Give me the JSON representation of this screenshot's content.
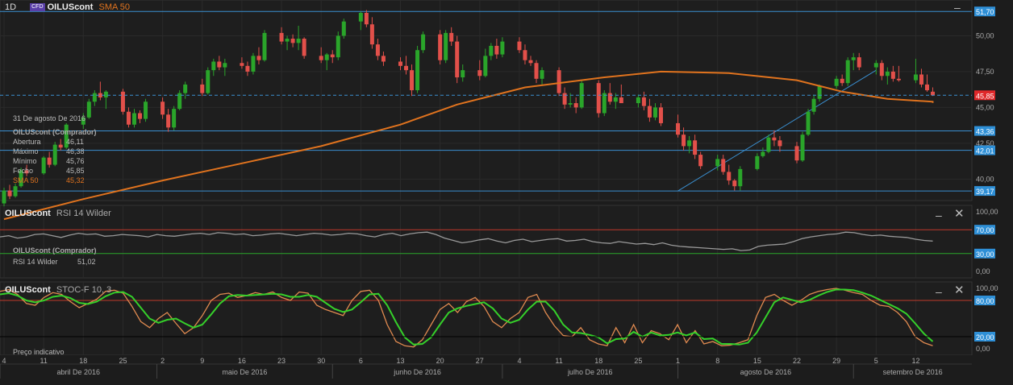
{
  "header": {
    "timeframe": "1D",
    "cfd_badge": "CFD",
    "symbol": "OILUScont",
    "indicator": "SMA 50"
  },
  "info_panel": {
    "date": "31 De agosto De 2016",
    "title": "OILUScont (Comprador)",
    "rows": [
      {
        "label": "Abertura",
        "value": "46,11"
      },
      {
        "label": "Máximo",
        "value": "46,38"
      },
      {
        "label": "Mínimo",
        "value": "45,76"
      },
      {
        "label": "Fecho",
        "value": "45,85"
      },
      {
        "label": "SMA 50",
        "value": "45,32"
      }
    ]
  },
  "rsi_panel": {
    "symbol": "OILUScont",
    "indicator": "RSI 14 Wilder",
    "info_title": "OILUScont (Comprador)",
    "info_label": "RSI 14 Wilder",
    "info_value": "51,02"
  },
  "stoch_panel": {
    "symbol": "OILUScont",
    "indicator": "STOC-F 10, 3",
    "footnote": "Preço indicativo"
  },
  "colors": {
    "up": "#2aa52a",
    "down": "#e2504a",
    "sma": "#e0731e",
    "hline": "#3a8fd0",
    "price_badge": "#e0282a",
    "level_badge": "#2e8fd6"
  },
  "chart_data": [
    {
      "type": "candlestick",
      "title": "OILUScont",
      "overlay": "SMA 50",
      "ylim": [
        38.5,
        52.5
      ],
      "y_ticks": [
        "51,70",
        "50,00",
        "47,50",
        "45,85",
        "45,00",
        "43,36",
        "42,50",
        "42,01",
        "40,00",
        "39,17"
      ],
      "x_ticks": [
        "4",
        "11",
        "18",
        "25",
        "2",
        "9",
        "16",
        "23",
        "30",
        "6",
        "13",
        "20",
        "27",
        "4",
        "11",
        "18",
        "25",
        "1",
        "8",
        "15",
        "22",
        "29",
        "5",
        "12"
      ],
      "months": [
        "abril De 2016",
        "maio De 2016",
        "junho De 2016",
        "julho De 2016",
        "agosto De 2016",
        "setembro De 2016"
      ],
      "last_price": 45.85,
      "last_price_label": "45,85",
      "horizontal_levels": [
        {
          "value": 51.7,
          "label": "51,70"
        },
        {
          "value": 43.36,
          "label": "43,36"
        },
        {
          "value": 42.01,
          "label": "42,01"
        },
        {
          "value": 39.17,
          "label": "39,17"
        }
      ],
      "trendline": {
        "from": [
          "2016-08-01",
          39.17
        ],
        "to": [
          "2016-09-05",
          47.6
        ]
      },
      "start_date": "2016-04-04",
      "ohlc": [
        [
          38.3,
          39.4,
          38.1,
          39.2
        ],
        [
          39.2,
          39.6,
          38.6,
          38.8
        ],
        [
          38.8,
          39.7,
          38.7,
          39.5
        ],
        [
          39.5,
          40.8,
          39.4,
          40.6
        ],
        [
          40.6,
          41.0,
          40.2,
          40.4
        ],
        [
          40.4,
          41.6,
          40.3,
          41.5
        ],
        [
          41.5,
          41.9,
          40.8,
          41.0
        ],
        [
          41.0,
          42.6,
          40.9,
          42.4
        ],
        [
          42.4,
          42.8,
          42.0,
          42.2
        ],
        [
          42.2,
          43.9,
          42.1,
          43.8
        ],
        [
          43.8,
          44.6,
          43.5,
          44.3
        ],
        [
          44.3,
          45.6,
          44.2,
          45.4
        ],
        [
          45.4,
          46.2,
          45.1,
          46.0
        ],
        [
          46.0,
          46.8,
          45.5,
          45.7
        ],
        [
          45.7,
          46.2,
          44.9,
          46.1
        ],
        [
          46.1,
          46.3,
          44.5,
          44.7
        ],
        [
          44.7,
          45.0,
          43.6,
          43.8
        ],
        [
          43.8,
          44.9,
          43.6,
          44.6
        ],
        [
          44.6,
          44.8,
          43.9,
          44.2
        ],
        [
          44.2,
          45.6,
          44.0,
          45.4
        ],
        [
          45.4,
          45.7,
          44.2,
          44.5
        ],
        [
          44.5,
          44.9,
          43.3,
          43.6
        ],
        [
          43.6,
          45.1,
          43.4,
          44.9
        ],
        [
          44.9,
          46.2,
          44.8,
          46.0
        ],
        [
          46.0,
          46.8,
          45.6,
          46.6
        ],
        [
          46.6,
          47.0,
          45.8,
          46.0
        ],
        [
          46.0,
          47.8,
          45.9,
          47.6
        ],
        [
          47.6,
          48.4,
          47.2,
          48.2
        ],
        [
          48.2,
          48.6,
          47.6,
          47.8
        ],
        [
          47.8,
          48.4,
          47.2,
          48.1
        ],
        [
          48.1,
          48.5,
          47.7,
          47.9
        ],
        [
          47.9,
          48.2,
          47.2,
          47.5
        ],
        [
          47.5,
          48.8,
          47.3,
          48.6
        ],
        [
          48.6,
          49.2,
          48.0,
          48.3
        ],
        [
          48.3,
          50.4,
          48.2,
          50.2
        ],
        [
          50.2,
          50.6,
          49.4,
          49.6
        ],
        [
          49.6,
          50.0,
          49.0,
          49.8
        ],
        [
          49.8,
          50.1,
          49.2,
          49.5
        ],
        [
          49.5,
          50.7,
          49.0,
          49.8
        ],
        [
          49.8,
          49.9,
          48.4,
          48.6
        ],
        [
          48.6,
          49.2,
          48.1,
          48.3
        ],
        [
          48.3,
          48.8,
          47.6,
          48.7
        ],
        [
          48.7,
          49.0,
          48.1,
          48.5
        ],
        [
          48.5,
          50.3,
          48.3,
          50.0
        ],
        [
          50.0,
          51.2,
          49.8,
          51.0
        ],
        [
          51.0,
          51.7,
          50.4,
          51.6
        ],
        [
          51.6,
          51.8,
          50.6,
          50.8
        ],
        [
          50.8,
          51.3,
          49.1,
          49.4
        ],
        [
          49.4,
          49.8,
          48.3,
          48.6
        ],
        [
          48.6,
          48.9,
          47.9,
          48.2
        ],
        [
          48.2,
          48.5,
          47.6,
          47.9
        ],
        [
          47.9,
          48.6,
          47.3,
          47.6
        ],
        [
          47.6,
          48.0,
          45.8,
          46.2
        ],
        [
          46.2,
          49.3,
          46.0,
          49.0
        ],
        [
          49.0,
          50.3,
          48.8,
          50.1
        ],
        [
          50.1,
          50.4,
          48.0,
          48.3
        ],
        [
          48.3,
          50.4,
          48.1,
          50.2
        ],
        [
          50.2,
          50.6,
          49.3,
          49.6
        ],
        [
          49.6,
          50.0,
          46.7,
          47.1
        ],
        [
          47.1,
          48.0,
          46.8,
          47.6
        ],
        [
          47.6,
          48.3,
          46.9,
          47.2
        ],
        [
          47.2,
          49.1,
          47.1,
          48.6
        ],
        [
          48.6,
          49.5,
          48.3,
          49.3
        ],
        [
          49.3,
          49.8,
          48.4,
          48.7
        ],
        [
          48.7,
          49.9,
          48.5,
          49.6
        ],
        [
          49.6,
          49.9,
          48.8,
          49.0
        ],
        [
          49.0,
          49.4,
          48.0,
          48.3
        ],
        [
          48.3,
          48.6,
          47.9,
          48.1
        ],
        [
          48.1,
          48.3,
          46.7,
          47.0
        ],
        [
          47.0,
          47.8,
          46.6,
          47.6
        ],
        [
          47.6,
          47.8,
          45.8,
          46.0
        ],
        [
          46.0,
          46.4,
          44.9,
          45.2
        ],
        [
          45.2,
          46.0,
          45.0,
          45.3
        ],
        [
          45.3,
          45.7,
          44.6,
          45.0
        ],
        [
          45.0,
          46.9,
          44.9,
          46.7
        ],
        [
          46.7,
          46.9,
          44.3,
          44.6
        ],
        [
          44.6,
          46.2,
          44.4,
          46.0
        ],
        [
          46.0,
          46.7,
          45.2,
          45.4
        ],
        [
          45.4,
          46.0,
          44.9,
          45.7
        ],
        [
          45.7,
          46.6,
          45.4,
          45.3
        ],
        [
          45.3,
          45.9,
          45.0,
          45.7
        ],
        [
          45.7,
          46.1,
          44.8,
          45.1
        ],
        [
          45.1,
          45.6,
          44.0,
          44.3
        ],
        [
          44.3,
          45.3,
          44.1,
          45.0
        ],
        [
          45.0,
          45.3,
          43.7,
          43.9
        ],
        [
          43.9,
          44.5,
          42.9,
          43.1
        ],
        [
          43.1,
          43.6,
          42.0,
          42.3
        ],
        [
          42.3,
          43.0,
          41.8,
          42.7
        ],
        [
          42.7,
          43.1,
          41.4,
          41.7
        ],
        [
          41.7,
          41.9,
          40.7,
          40.9
        ],
        [
          40.9,
          41.7,
          40.6,
          41.4
        ],
        [
          41.4,
          41.7,
          40.3,
          40.5
        ],
        [
          40.5,
          41.0,
          39.6,
          39.9
        ],
        [
          39.9,
          40.0,
          39.2,
          39.5
        ],
        [
          39.5,
          40.9,
          39.2,
          40.7
        ],
        [
          40.7,
          41.8,
          40.6,
          41.6
        ],
        [
          41.6,
          42.2,
          41.5,
          41.9
        ],
        [
          41.9,
          43.1,
          41.8,
          42.9
        ],
        [
          42.9,
          43.4,
          42.3,
          42.7
        ],
        [
          42.7,
          43.0,
          41.9,
          42.3
        ],
        [
          42.3,
          42.6,
          41.1,
          41.3
        ],
        [
          41.3,
          43.3,
          41.2,
          43.1
        ],
        [
          43.1,
          44.9,
          43.0,
          44.7
        ],
        [
          44.7,
          45.9,
          44.5,
          45.6
        ],
        [
          45.6,
          46.6,
          45.4,
          46.5
        ],
        [
          46.5,
          47.2,
          46.3,
          47.0
        ],
        [
          47.0,
          47.3,
          46.5,
          46.7
        ],
        [
          46.7,
          48.5,
          46.5,
          48.3
        ],
        [
          48.3,
          48.8,
          47.6,
          48.5
        ],
        [
          48.5,
          48.8,
          47.6,
          47.8
        ],
        [
          47.8,
          48.3,
          47.3,
          48.1
        ],
        [
          48.1,
          48.3,
          46.9,
          47.2
        ],
        [
          47.2,
          47.8,
          46.6,
          47.5
        ],
        [
          47.5,
          47.9,
          46.8,
          47.0
        ],
        [
          47.0,
          47.9,
          46.8,
          46.9
        ],
        [
          46.9,
          48.4,
          46.7,
          47.3
        ],
        [
          47.3,
          47.7,
          46.4,
          46.6
        ],
        [
          46.6,
          47.3,
          46.1,
          46.2
        ],
        [
          46.1,
          46.4,
          45.8,
          45.85
        ]
      ],
      "sma_50": [
        [
          0,
          37.2
        ],
        [
          10,
          38.6
        ],
        [
          20,
          39.9
        ],
        [
          30,
          41.1
        ],
        [
          40,
          42.3
        ],
        [
          50,
          43.8
        ],
        [
          58,
          45.2
        ],
        [
          66,
          46.4
        ],
        [
          76,
          47.1
        ],
        [
          84,
          47.5
        ],
        [
          92,
          47.4
        ],
        [
          100,
          46.9
        ],
        [
          106,
          46.1
        ],
        [
          112,
          45.6
        ],
        [
          120,
          45.4
        ],
        [
          127,
          45.32
        ]
      ]
    },
    {
      "type": "line",
      "title": "RSI 14 Wilder",
      "ylim": [
        0,
        100
      ],
      "y_ticks": [
        "100,00",
        "70,00",
        "30,00",
        "0,00"
      ],
      "levels": [
        70,
        30
      ],
      "series": [
        {
          "name": "RSI 14 Wilder",
          "values": [
            58,
            60,
            56,
            58,
            62,
            63,
            60,
            57,
            61,
            64,
            62,
            63,
            59,
            60,
            62,
            61,
            60,
            58,
            62,
            60,
            59,
            61,
            63,
            64,
            62,
            65,
            64,
            62,
            63,
            60,
            61,
            63,
            64,
            62,
            60,
            62,
            64,
            63,
            61,
            62,
            64,
            63,
            60,
            58,
            62,
            64,
            60,
            63,
            65,
            66,
            62,
            56,
            52,
            48,
            50,
            53,
            55,
            51,
            48,
            52,
            54,
            50,
            52,
            54,
            55,
            51,
            52,
            54,
            50,
            48,
            47,
            50,
            48,
            46,
            47,
            45,
            48,
            44,
            42,
            41,
            40,
            39,
            38,
            37,
            38,
            35,
            36,
            42,
            44,
            45,
            46,
            50,
            55,
            58,
            60,
            62,
            63,
            66,
            65,
            62,
            60,
            61,
            59,
            58,
            57,
            54,
            52,
            51
          ]
        }
      ]
    },
    {
      "type": "line",
      "title": "STOC-F 10, 3",
      "ylim": [
        0,
        100
      ],
      "y_ticks": [
        "100,00",
        "80,00",
        "20,00",
        "0,00"
      ],
      "levels": [
        80,
        20
      ],
      "series": [
        {
          "name": "%K",
          "values": [
            95,
            98,
            90,
            75,
            72,
            85,
            93,
            90,
            78,
            68,
            75,
            82,
            95,
            97,
            92,
            70,
            45,
            35,
            50,
            60,
            42,
            25,
            35,
            55,
            80,
            90,
            92,
            85,
            88,
            93,
            90,
            94,
            85,
            80,
            94,
            92,
            72,
            65,
            60,
            55,
            80,
            95,
            97,
            80,
            40,
            12,
            5,
            3,
            15,
            40,
            65,
            75,
            60,
            78,
            85,
            70,
            45,
            35,
            50,
            60,
            85,
            90,
            60,
            38,
            22,
            20,
            35,
            15,
            8,
            5,
            35,
            10,
            40,
            10,
            30,
            25,
            15,
            40,
            10,
            30,
            8,
            12,
            5,
            6,
            10,
            15,
            55,
            85,
            90,
            80,
            72,
            80,
            90,
            95,
            98,
            100,
            97,
            93,
            90,
            80,
            72,
            70,
            60,
            45,
            20,
            10,
            5
          ]
        },
        {
          "name": "%D",
          "values": [
            90,
            92,
            88,
            80,
            77,
            80,
            86,
            88,
            84,
            76,
            74,
            78,
            87,
            93,
            94,
            86,
            68,
            50,
            43,
            48,
            50,
            42,
            35,
            40,
            57,
            75,
            87,
            89,
            88,
            89,
            90,
            91,
            90,
            86,
            86,
            89,
            86,
            76,
            66,
            61,
            65,
            77,
            90,
            91,
            72,
            44,
            19,
            7,
            8,
            19,
            40,
            60,
            67,
            71,
            74,
            77,
            67,
            50,
            43,
            48,
            65,
            78,
            78,
            63,
            40,
            27,
            26,
            23,
            19,
            9,
            16,
            17,
            28,
            20,
            27,
            22,
            23,
            27,
            22,
            27,
            16,
            17,
            8,
            8,
            7,
            10,
            27,
            52,
            77,
            85,
            81,
            77,
            81,
            88,
            94,
            98,
            98,
            97,
            93,
            88,
            81,
            74,
            67,
            58,
            42,
            25,
            12
          ]
        }
      ]
    }
  ]
}
